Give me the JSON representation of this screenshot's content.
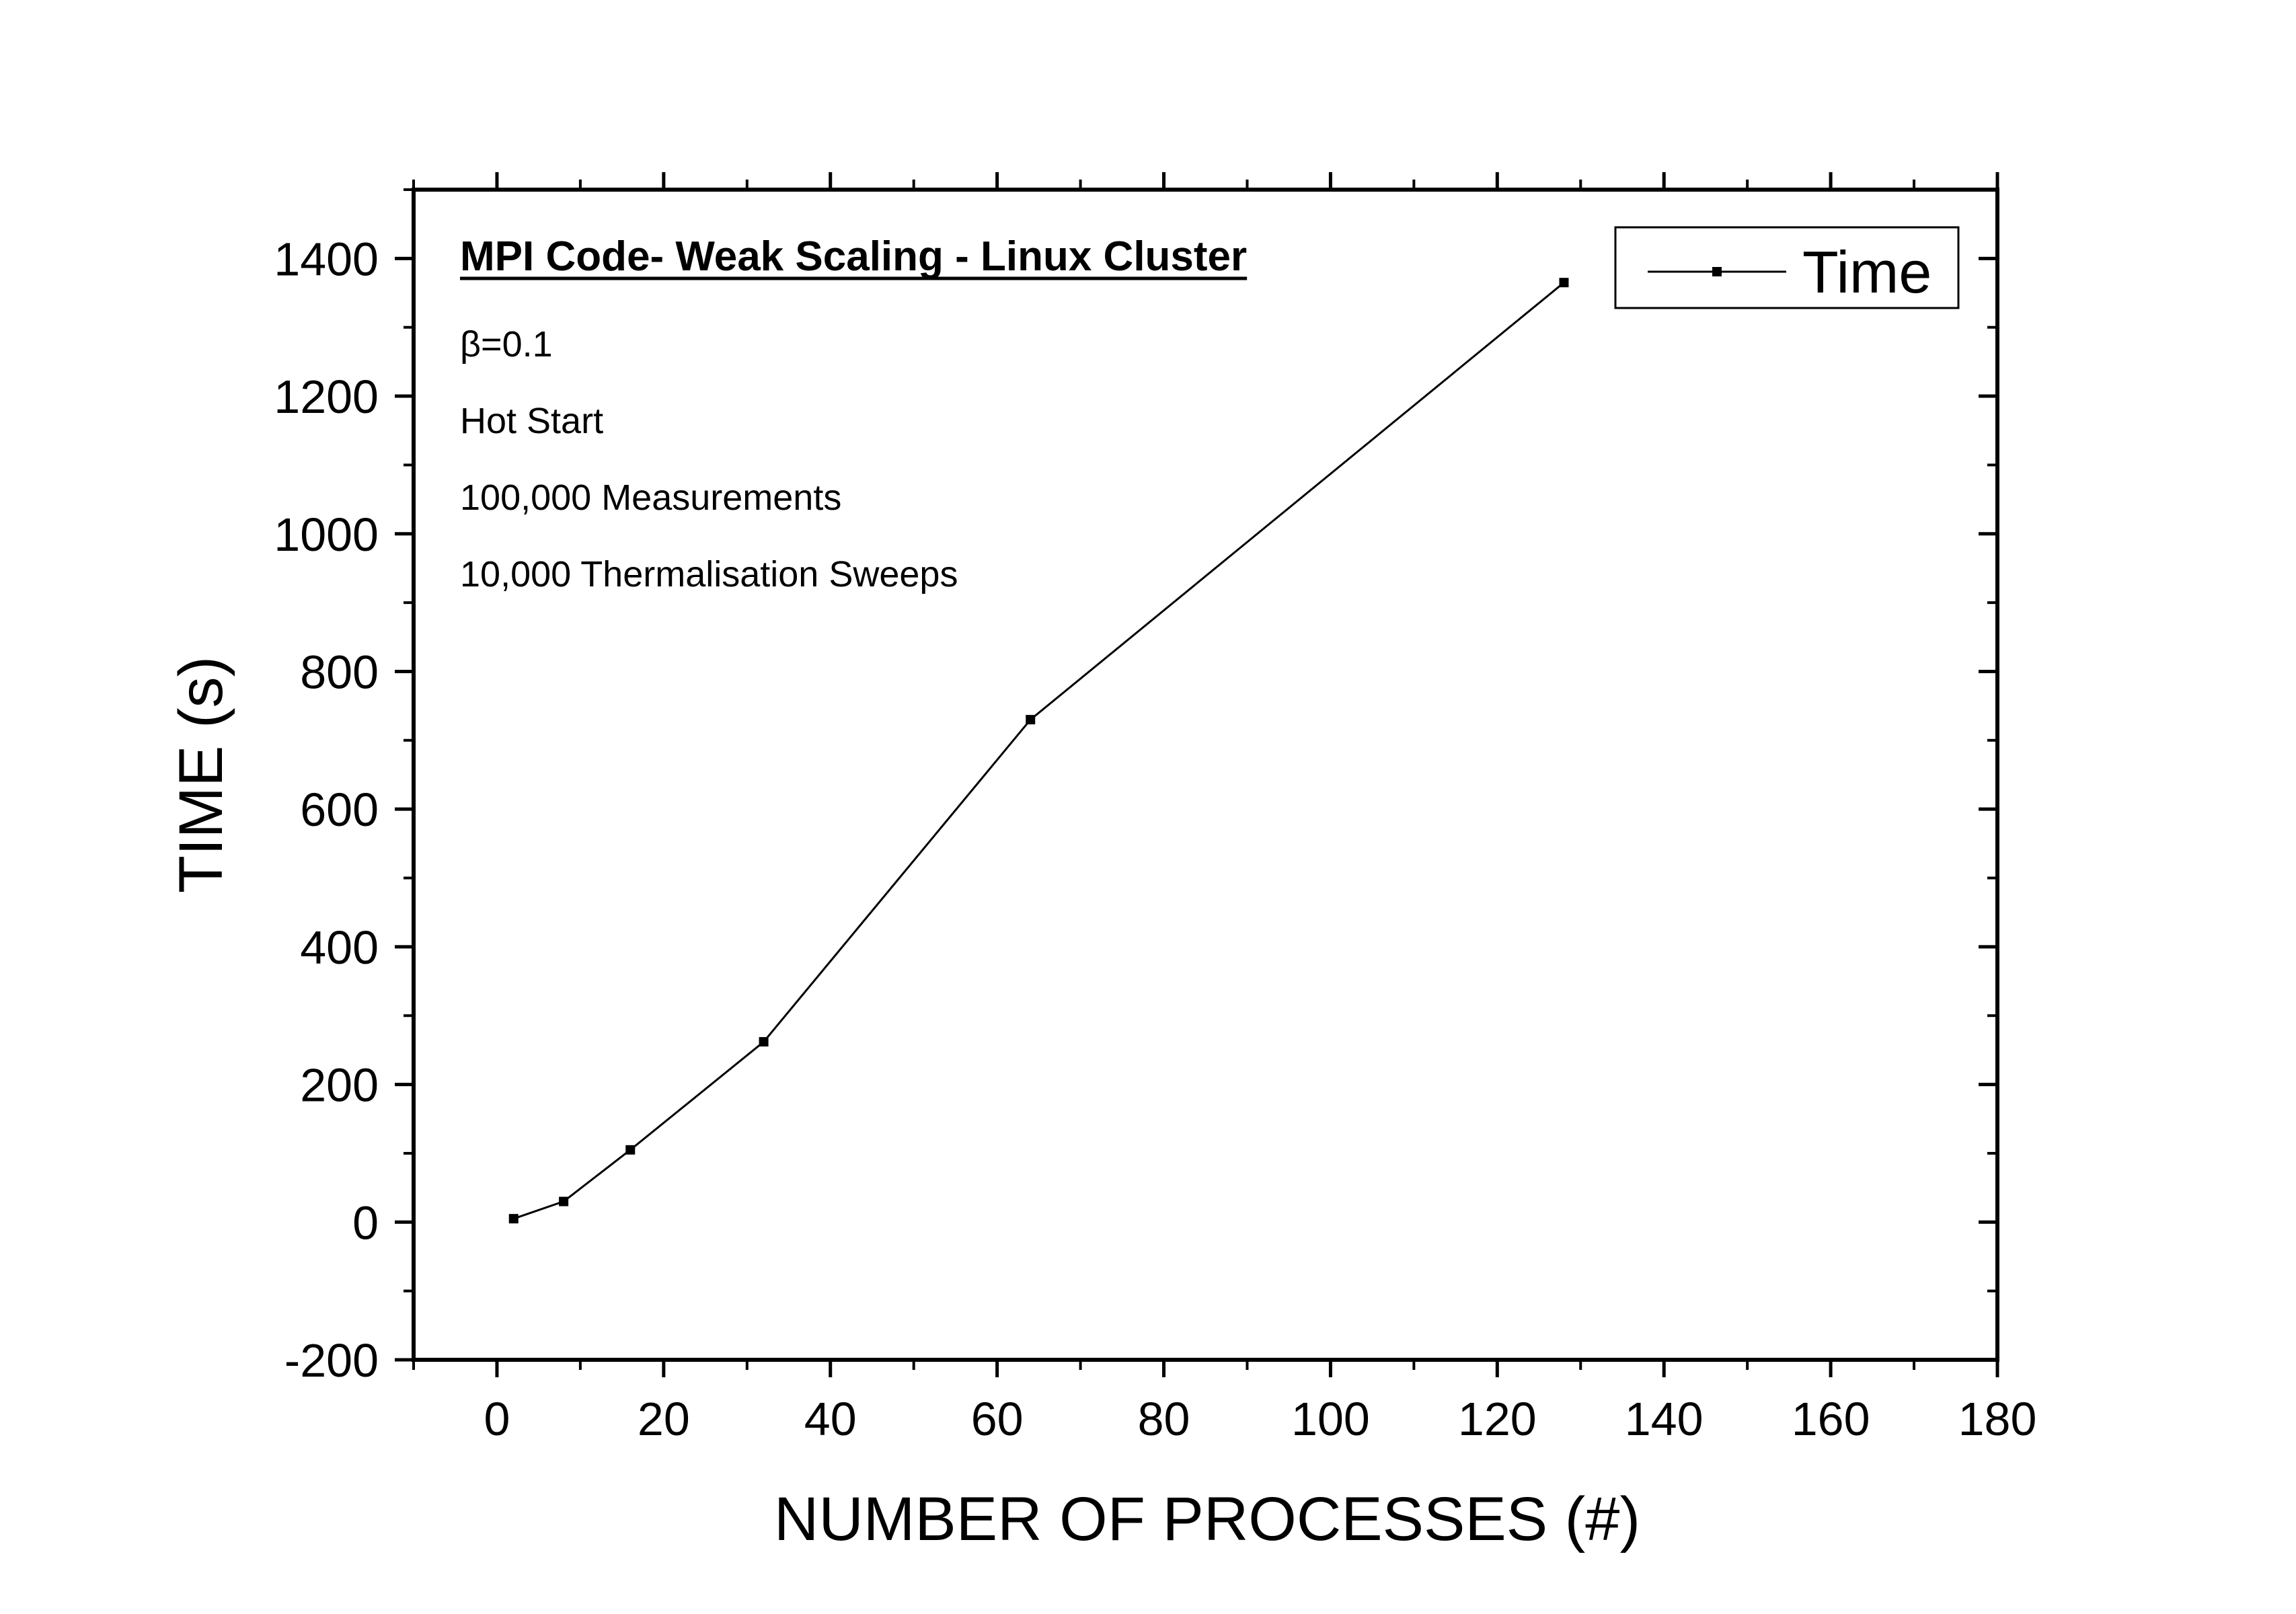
{
  "chart_data": {
    "type": "line",
    "xlabel": "NUMBER OF PROCESSES (#)",
    "ylabel": "TIME (s)",
    "xlim": [
      -10,
      180
    ],
    "ylim": [
      -200,
      1500
    ],
    "x_ticks": [
      0,
      20,
      40,
      60,
      80,
      100,
      120,
      140,
      160,
      180
    ],
    "y_ticks": [
      -200,
      0,
      200,
      400,
      600,
      800,
      1000,
      1200,
      1400
    ],
    "grid": false,
    "legend_position": "top-right",
    "annotations": {
      "title": "MPI Code- Weak Scaling - Linux Cluster",
      "lines": [
        "β=0.1",
        "Hot Start",
        "100,000 Measurements",
        "10,000 Thermalisation Sweeps"
      ]
    },
    "series": [
      {
        "name": "Time",
        "color": "#000000",
        "marker": "square",
        "points": [
          {
            "x": 2,
            "y": 5
          },
          {
            "x": 8,
            "y": 30
          },
          {
            "x": 16,
            "y": 105
          },
          {
            "x": 32,
            "y": 262
          },
          {
            "x": 64,
            "y": 730
          },
          {
            "x": 128,
            "y": 1365
          }
        ]
      }
    ]
  }
}
